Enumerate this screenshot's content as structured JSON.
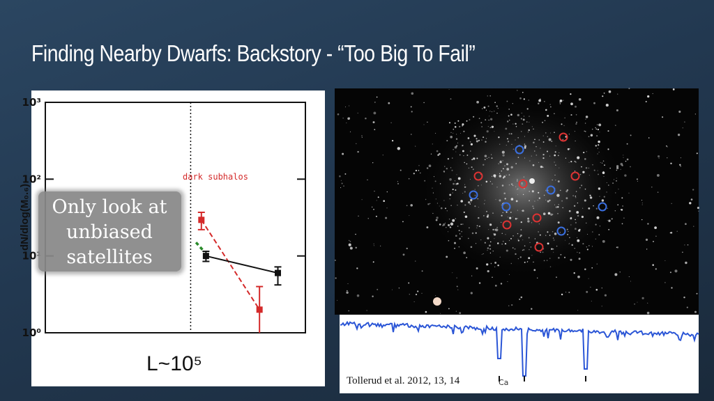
{
  "title": "Finding Nearby Dwarfs: Backstory - “Too Big To Fail”",
  "chart_data": {
    "type": "line",
    "y_label": "dN/dlog(M₀.₆)",
    "x_label": "L~10⁵",
    "ylog": true,
    "ylim": [
      1,
      1000
    ],
    "yticks": [
      {
        "value": 1,
        "label": "10⁰"
      },
      {
        "value": 10,
        "label": "10¹"
      },
      {
        "value": 100,
        "label": "10²"
      },
      {
        "value": 1000,
        "label": "10³"
      }
    ],
    "xlim": [
      3.1,
      6.5
    ],
    "vline": 5,
    "series": [
      {
        "name": "dark subhalos",
        "color": "#d42a2a",
        "dashed": true,
        "x": [
          5.14,
          5.9
        ],
        "values": [
          29.5,
          2.0
        ],
        "err_low": [
          22,
          0.5
        ],
        "err_high": [
          37,
          4.0
        ]
      },
      {
        "color": "#111111",
        "x": [
          5.2,
          6.14
        ],
        "values": [
          10,
          6.0
        ],
        "err_low": [
          8.5,
          4.2
        ],
        "err_high": [
          11.5,
          7.2
        ]
      },
      {
        "color": "#2a8a2a",
        "dashed": true,
        "x": [
          5.07,
          5.18
        ],
        "values": [
          15,
          11.3
        ]
      }
    ],
    "annotation": "Only look at unbiased satellites"
  },
  "spectrum_label": "Ca",
  "caption": "Tollerud et al. 2012, 13, 14"
}
